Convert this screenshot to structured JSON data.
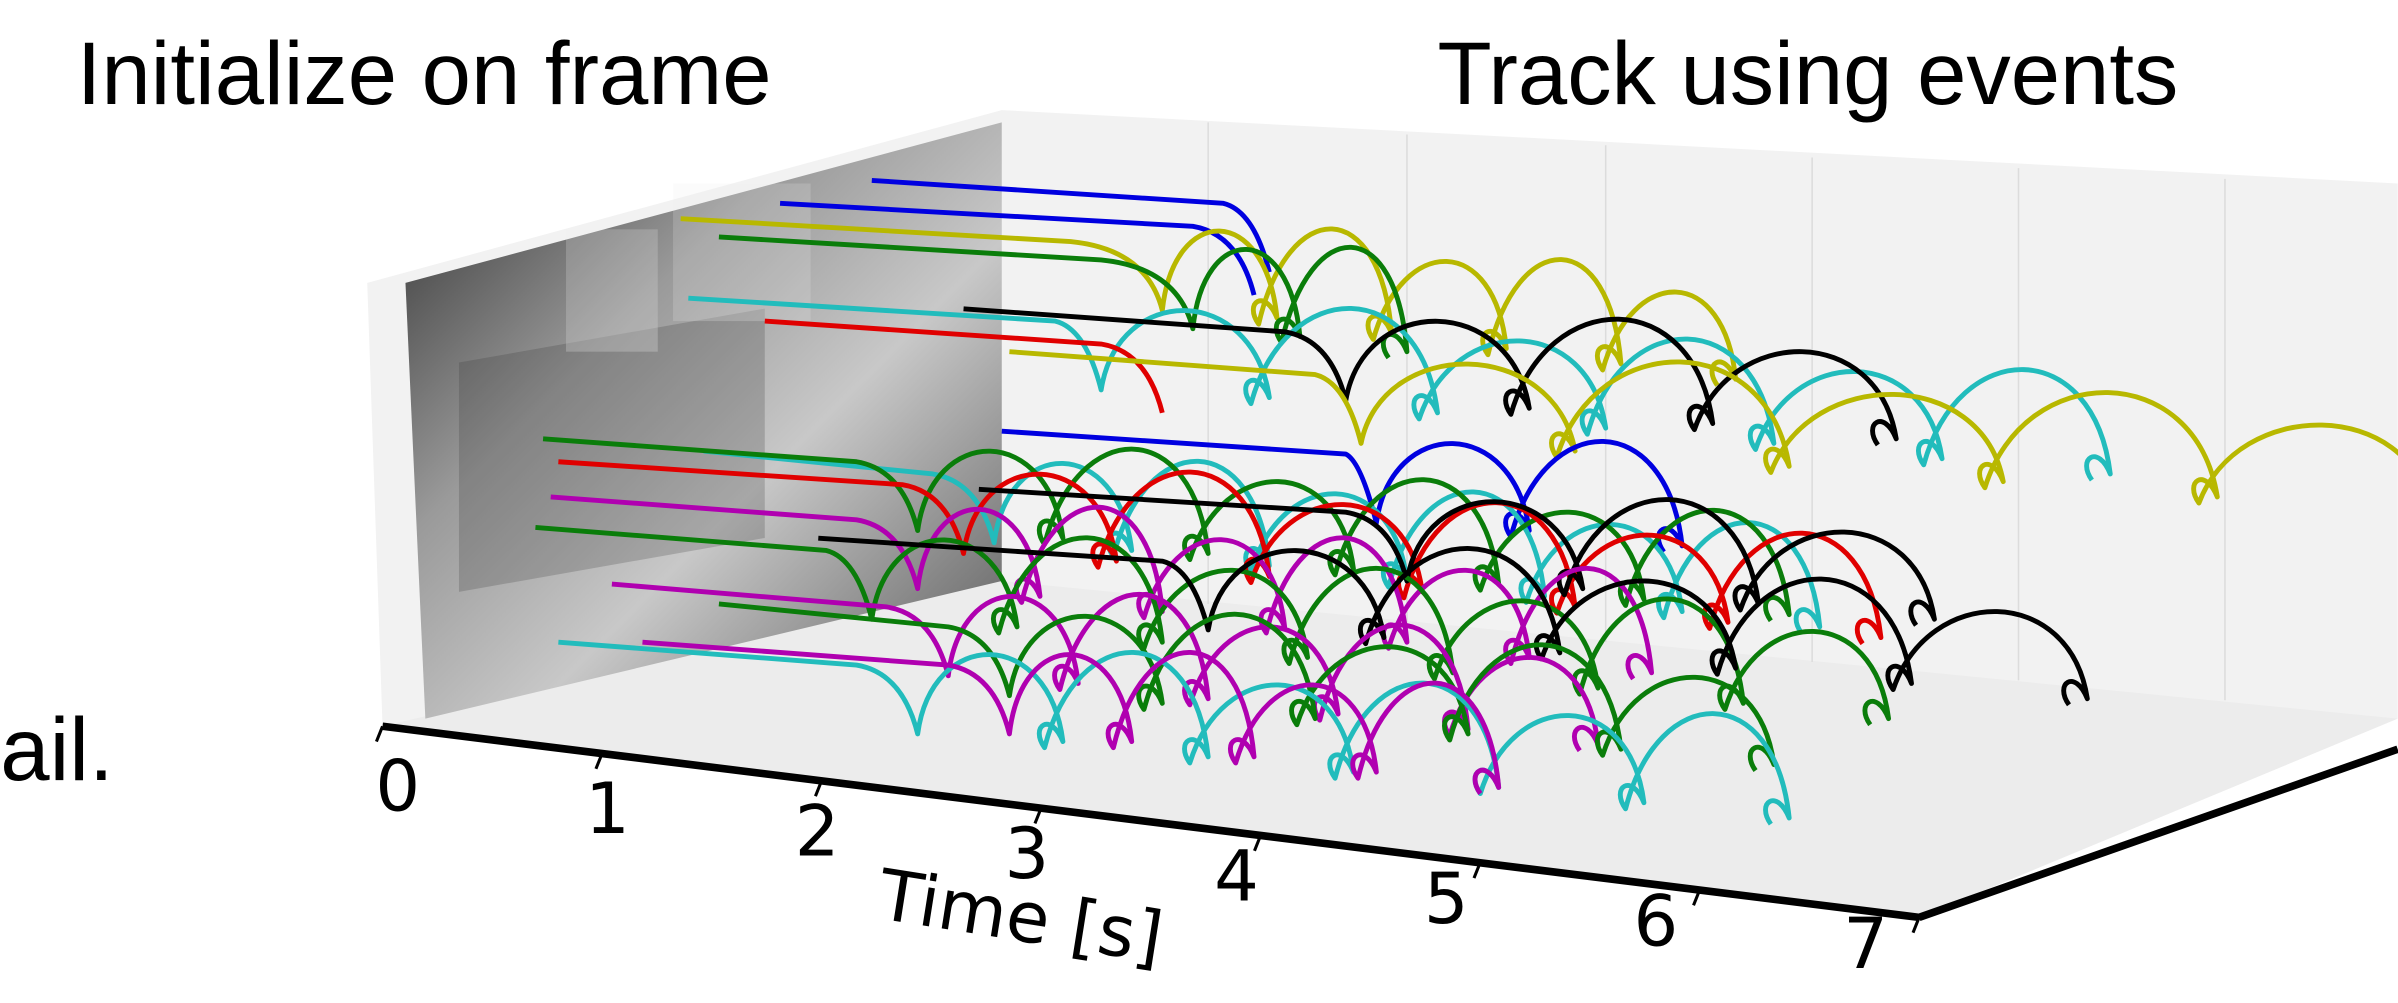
{
  "chart_data": {
    "type": "trajectory3d",
    "annotations": [
      "Initialize on frame",
      "Track using events",
      "ail."
    ],
    "xlabel": "Time [s]",
    "xlim": [
      0,
      7
    ],
    "xticks": [
      0,
      1,
      2,
      3,
      4,
      5,
      6,
      7
    ]
  }
}
